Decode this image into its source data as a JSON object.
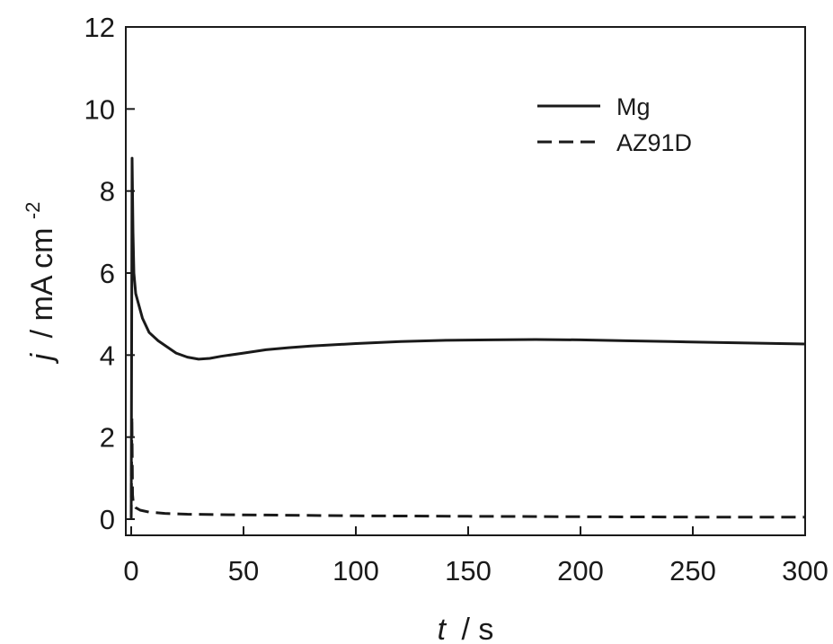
{
  "chart_data": {
    "type": "line",
    "title": "",
    "xlabel": {
      "var": "t",
      "unit": "/ s"
    },
    "ylabel": {
      "var": "j",
      "unit": "/ mA cm",
      "sup": "-2"
    },
    "xlim": [
      0,
      300
    ],
    "ylim": [
      0,
      12
    ],
    "xticks": [
      0,
      50,
      100,
      150,
      200,
      250,
      300
    ],
    "yticks": [
      0,
      2,
      4,
      6,
      8,
      10,
      12
    ],
    "grid": false,
    "legend": "top-right",
    "series": [
      {
        "name": "Mg",
        "style": "solid",
        "color": "#1a1a1a",
        "x": [
          0,
          0.4,
          0.8,
          1.2,
          2,
          3,
          5,
          8,
          12,
          16,
          20,
          25,
          30,
          35,
          40,
          50,
          60,
          70,
          80,
          100,
          120,
          140,
          160,
          180,
          200,
          220,
          240,
          260,
          280,
          300
        ],
        "y": [
          0,
          8.8,
          7.0,
          6.0,
          5.5,
          5.3,
          4.9,
          4.55,
          4.35,
          4.2,
          4.05,
          3.95,
          3.9,
          3.92,
          3.97,
          4.05,
          4.13,
          4.18,
          4.22,
          4.28,
          4.33,
          4.36,
          4.37,
          4.38,
          4.37,
          4.35,
          4.33,
          4.31,
          4.29,
          4.27
        ]
      },
      {
        "name": "AZ91D",
        "style": "dashed",
        "color": "#1a1a1a",
        "x": [
          0,
          0.3,
          0.6,
          1,
          2,
          4,
          8,
          15,
          25,
          40,
          60,
          100,
          150,
          200,
          250,
          300
        ],
        "y": [
          0,
          2.5,
          0.6,
          0.35,
          0.28,
          0.22,
          0.17,
          0.14,
          0.12,
          0.11,
          0.1,
          0.08,
          0.07,
          0.06,
          0.05,
          0.05
        ]
      }
    ]
  }
}
